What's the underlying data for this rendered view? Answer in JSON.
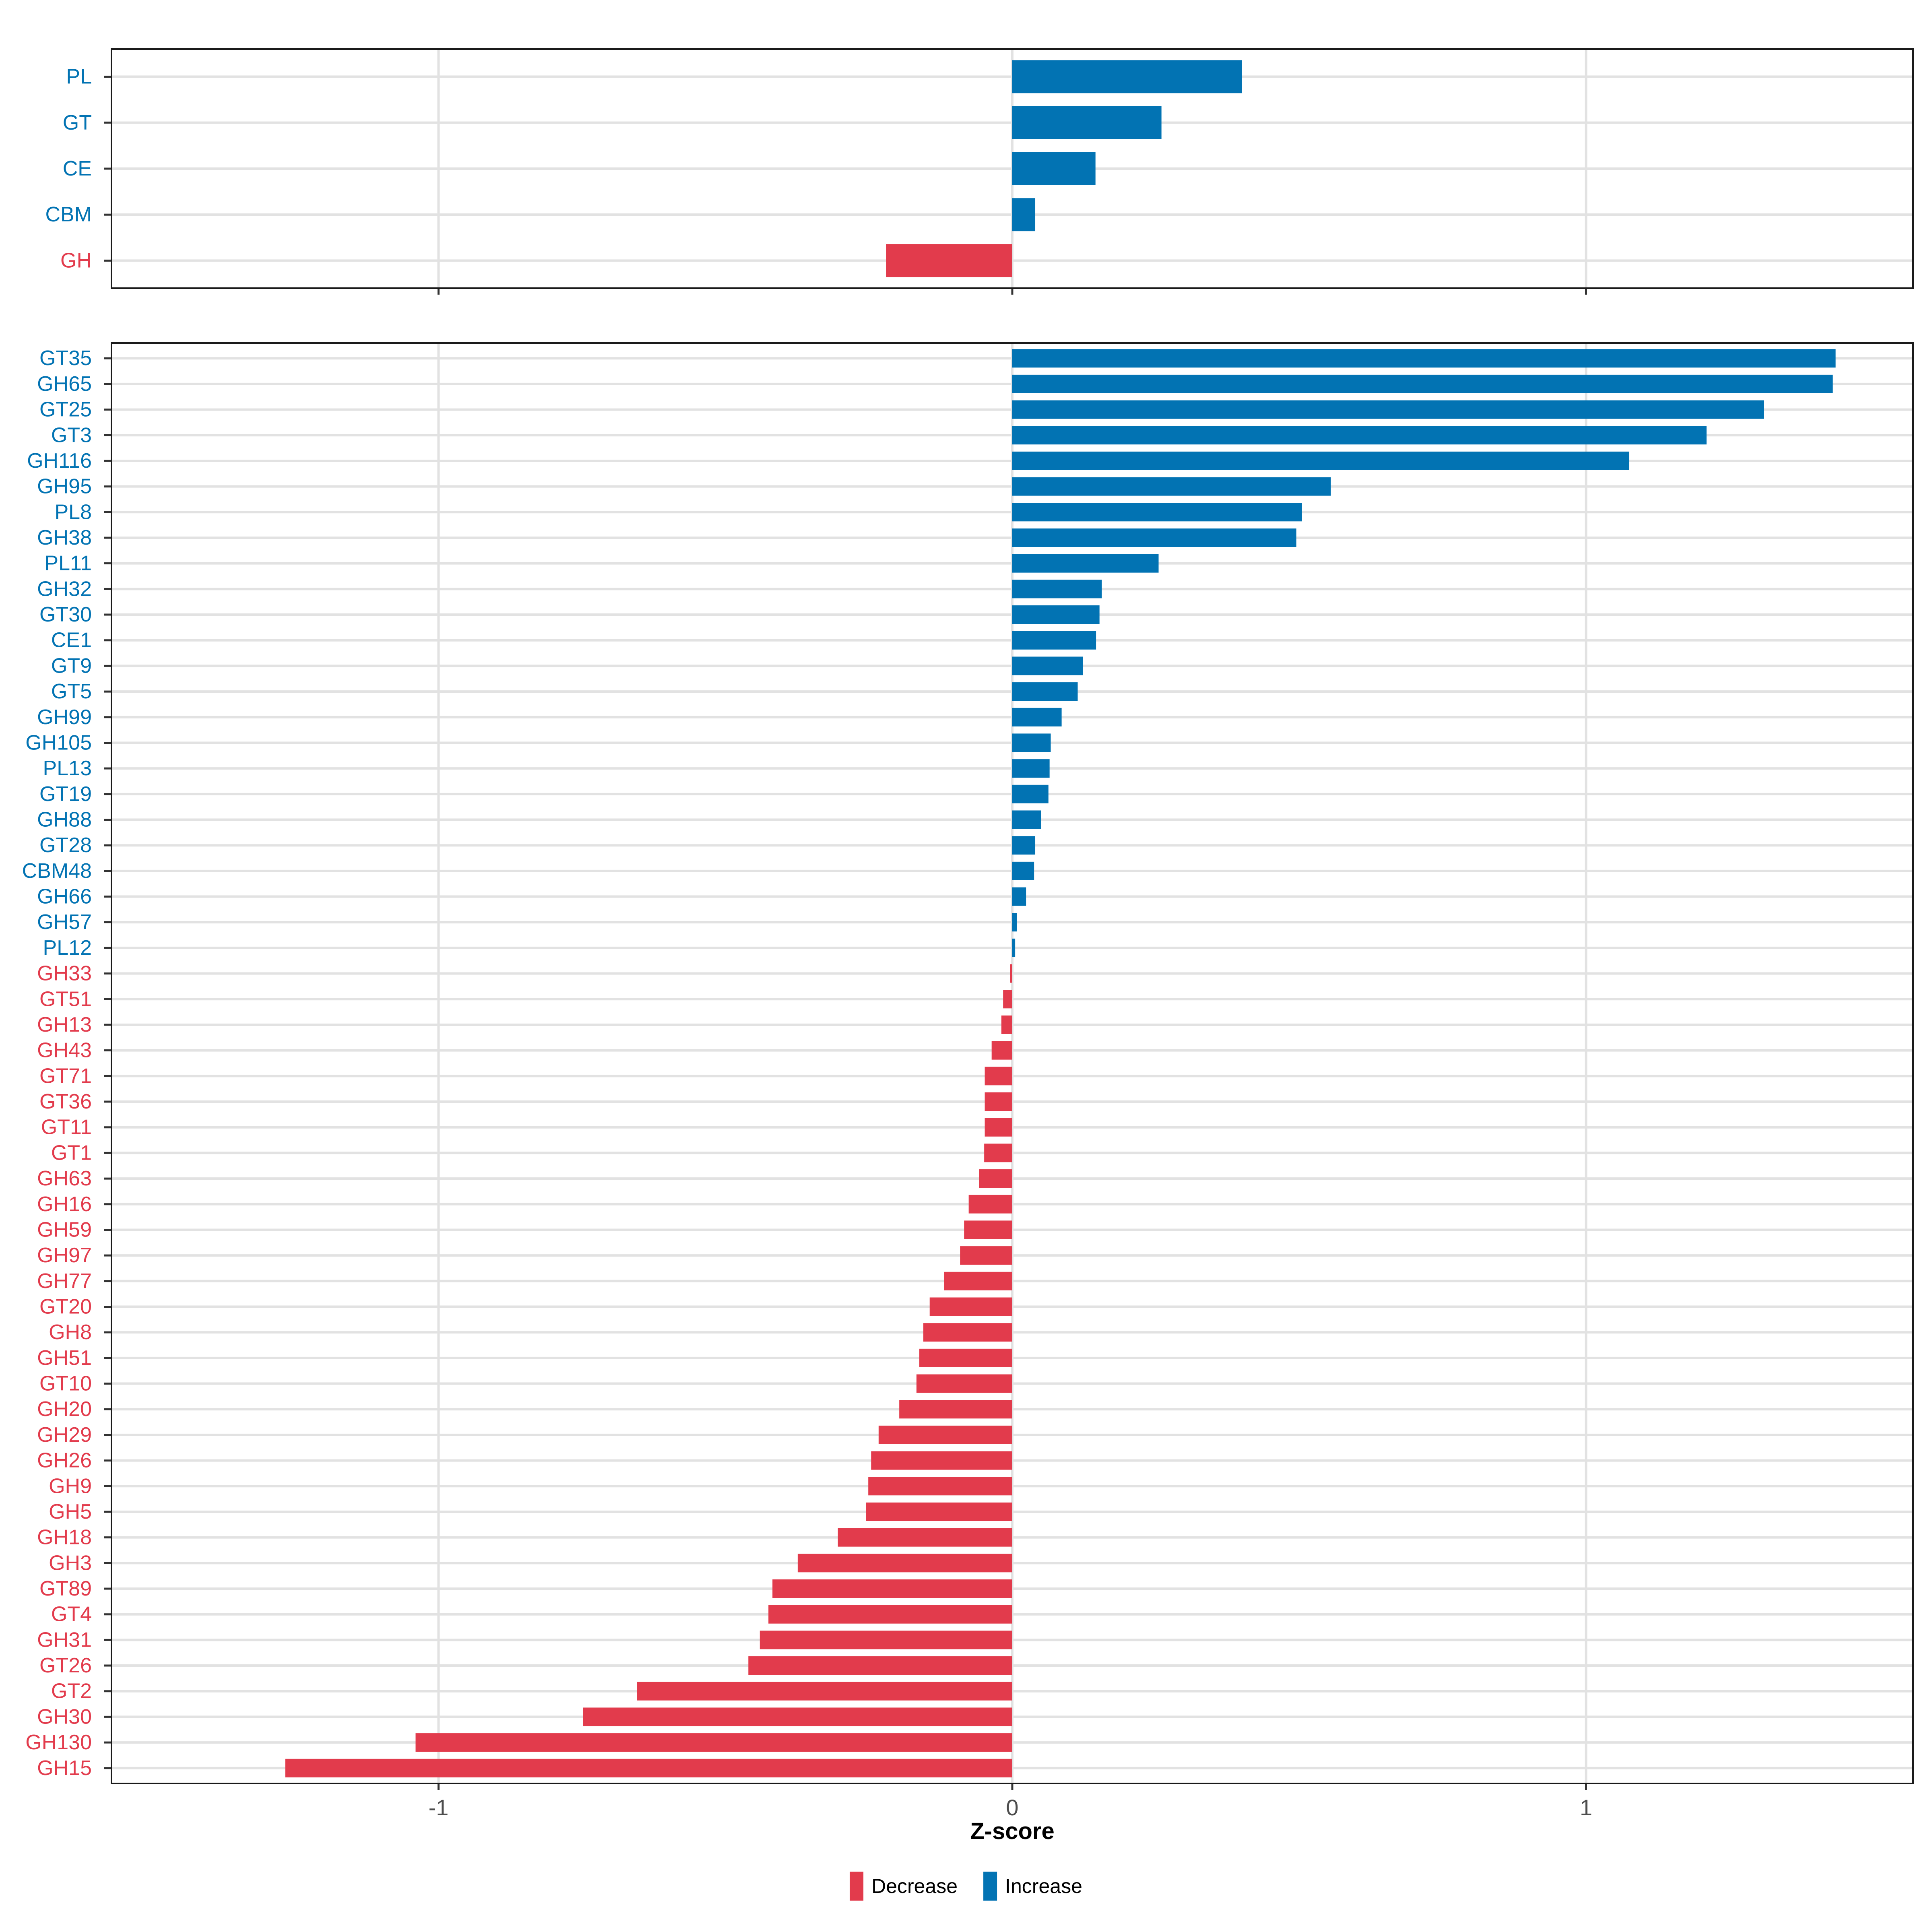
{
  "axis": {
    "title": "Z-score",
    "tick_labels": [
      "-1",
      "0",
      "1"
    ],
    "tick_values": [
      -1,
      0,
      1
    ]
  },
  "legend": {
    "items": [
      {
        "label": "Decrease",
        "color": "#E23B4C"
      },
      {
        "label": "Increase",
        "color": "#0273B3"
      }
    ]
  },
  "colors": {
    "increase": "#0273B3",
    "decrease": "#E23B4C",
    "gridline": "#E2E2E2",
    "panel_border": "#1A1A1A",
    "tick_mark": "#333333",
    "axis_text": "#4D4D4D",
    "axis_title": "#000000",
    "background": "#FFFFFF"
  },
  "chart_data": [
    {
      "type": "bar",
      "orientation": "horizontal",
      "panel": "cazyme-class",
      "title": "",
      "xlabel": "Z-score",
      "ylabel": "",
      "xlim": [
        -1.57,
        1.57
      ],
      "grid": true,
      "show_x_labels": false,
      "categories": [
        "PL",
        "GT",
        "CE",
        "CBM",
        "GH"
      ],
      "values": [
        0.4,
        0.26,
        0.145,
        0.04,
        -0.22
      ]
    },
    {
      "type": "bar",
      "orientation": "horizontal",
      "panel": "cazyme-family",
      "title": "",
      "xlabel": "Z-score",
      "ylabel": "",
      "xlim": [
        -1.57,
        1.57
      ],
      "grid": true,
      "show_x_labels": true,
      "categories": [
        "GT35",
        "GH65",
        "GT25",
        "GT3",
        "GH116",
        "GH95",
        "PL8",
        "GH38",
        "PL11",
        "GH32",
        "GT30",
        "CE1",
        "GT9",
        "GT5",
        "GH99",
        "GH105",
        "PL13",
        "GT19",
        "GH88",
        "GT28",
        "CBM48",
        "GH66",
        "GH57",
        "PL12",
        "GH33",
        "GT51",
        "GH13",
        "GH43",
        "GT71",
        "GT36",
        "GT11",
        "GT1",
        "GH63",
        "GH16",
        "GH59",
        "GH97",
        "GH77",
        "GT20",
        "GH8",
        "GH51",
        "GT10",
        "GH20",
        "GH29",
        "GH26",
        "GH9",
        "GH5",
        "GH18",
        "GH3",
        "GT89",
        "GT4",
        "GH31",
        "GT26",
        "GT2",
        "GH30",
        "GH130",
        "GH15"
      ],
      "values": [
        1.435,
        1.43,
        1.31,
        1.21,
        1.075,
        0.555,
        0.505,
        0.495,
        0.255,
        0.156,
        0.152,
        0.146,
        0.123,
        0.114,
        0.086,
        0.067,
        0.065,
        0.063,
        0.05,
        0.04,
        0.038,
        0.024,
        0.008,
        0.005,
        -0.004,
        -0.016,
        -0.019,
        -0.036,
        -0.048,
        -0.048,
        -0.048,
        -0.049,
        -0.058,
        -0.076,
        -0.084,
        -0.091,
        -0.119,
        -0.144,
        -0.155,
        -0.162,
        -0.167,
        -0.197,
        -0.233,
        -0.246,
        -0.251,
        -0.255,
        -0.304,
        -0.374,
        -0.418,
        -0.425,
        -0.44,
        -0.46,
        -0.654,
        -0.748,
        -1.04,
        -1.267
      ]
    }
  ]
}
